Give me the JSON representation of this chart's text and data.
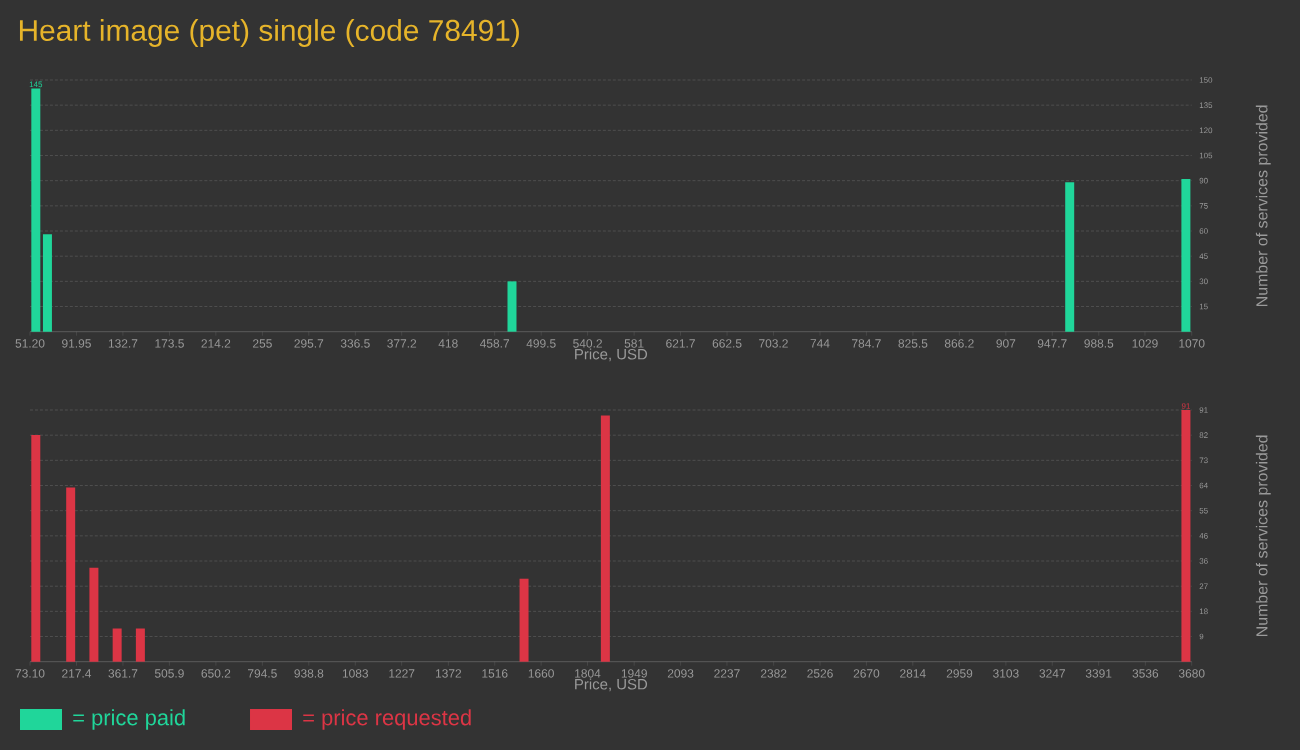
{
  "chart_data": [
    {
      "type": "bar",
      "title": "Heart image (pet) single (code 78491)",
      "xlabel": "Price, USD",
      "ylabel": "Number of services provided",
      "x": [
        56.3,
        66.5,
        473.9,
        963.0,
        1064.9
      ],
      "series": [
        {
          "name": "= price paid",
          "color": "#20d69a",
          "values": [
            145,
            58,
            30,
            89,
            91
          ],
          "value_labels": [
            "145",
            null,
            null,
            null,
            null
          ]
        }
      ],
      "xlim": [
        51.2,
        1070
      ],
      "ylim": [
        0,
        150
      ],
      "xticks": [
        {
          "value": 51.2,
          "label": "51.20"
        },
        91.95,
        132.7,
        173.5,
        214.2,
        255,
        295.7,
        336.5,
        377.2,
        418,
        458.7,
        499.5,
        540.2,
        581,
        621.7,
        662.5,
        703.2,
        744,
        784.7,
        825.5,
        866.2,
        907,
        947.7,
        988.5,
        1029,
        1070
      ],
      "yticks": [
        15,
        30,
        45,
        60,
        75,
        90,
        105,
        120,
        135,
        150
      ],
      "grid": "y",
      "legend": "bottom"
    },
    {
      "type": "bar",
      "xlabel": "Price, USD",
      "ylabel": "Number of services provided",
      "x": [
        91.1,
        199.4,
        271.5,
        343.7,
        415.8,
        1607.0,
        1859.5,
        3662.0
      ],
      "series": [
        {
          "name": "= price requested",
          "color": "#dc3545",
          "values": [
            82,
            63,
            34,
            12,
            12,
            30,
            89,
            91
          ],
          "value_labels": [
            null,
            null,
            null,
            null,
            null,
            null,
            null,
            "91"
          ]
        }
      ],
      "xlim": [
        73.1,
        3680
      ],
      "ylim": [
        0,
        91
      ],
      "xticks": [
        {
          "value": 73.1,
          "label": "73.10"
        },
        217.4,
        361.7,
        505.9,
        650.2,
        794.5,
        938.8,
        1083,
        1227,
        1372,
        1516,
        1660,
        1804,
        1949,
        2093,
        2237,
        2382,
        2526,
        2670,
        2814,
        2959,
        3103,
        3247,
        3391,
        3536,
        3680
      ],
      "yticks": [
        {
          "value": 9.1,
          "label": "9"
        },
        {
          "value": 18.2,
          "label": "18"
        },
        {
          "value": 27.3,
          "label": "27"
        },
        {
          "value": 36.4,
          "label": "36"
        },
        {
          "value": 45.5,
          "label": "46"
        },
        {
          "value": 54.6,
          "label": "55"
        },
        {
          "value": 63.7,
          "label": "64"
        },
        {
          "value": 72.8,
          "label": "73"
        },
        {
          "value": 81.9,
          "label": "82"
        },
        {
          "value": 91,
          "label": "91"
        }
      ],
      "grid": "y",
      "legend": "bottom"
    }
  ]
}
